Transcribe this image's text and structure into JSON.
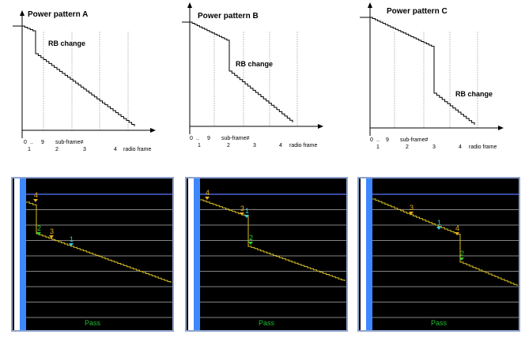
{
  "diagrams": [
    {
      "title": "Power pattern A",
      "rb_label": "RB change",
      "axis_sub_labels": [
        "0",
        "..",
        "9"
      ],
      "axis_label_subframe": "sub-frame#",
      "axis_label_radio": "radio frame",
      "radio_frames": [
        "1",
        "2",
        "3",
        "4"
      ]
    },
    {
      "title": "Power pattern B",
      "rb_label": "RB change",
      "axis_sub_labels": [
        "0",
        "..",
        "9"
      ],
      "axis_label_subframe": "sub-frame#",
      "axis_label_radio": "radio frame",
      "radio_frames": [
        "1",
        "2",
        "3",
        "4"
      ]
    },
    {
      "title": "Power pattern C",
      "rb_label": "RB change",
      "axis_sub_labels": [
        "0",
        "..",
        "9"
      ],
      "axis_label_subframe": "sub-frame#",
      "axis_label_radio": "radio frame",
      "radio_frames": [
        "1",
        "2",
        "3",
        "4"
      ]
    }
  ],
  "screens": [
    {
      "status": "Pass",
      "markers": [
        {
          "label": "4",
          "color": "#e8b020"
        },
        {
          "label": "2",
          "color": "#33cc33"
        },
        {
          "label": "3",
          "color": "#e8b020"
        },
        {
          "label": "1",
          "color": "#33ccdd"
        }
      ]
    },
    {
      "status": "Pass",
      "markers": [
        {
          "label": "4",
          "color": "#e8b020"
        },
        {
          "label": "3",
          "color": "#e8b020"
        },
        {
          "label": "1",
          "color": "#33ccdd"
        },
        {
          "label": "2",
          "color": "#33cc33"
        }
      ]
    },
    {
      "status": "Pass",
      "markers": [
        {
          "label": "3",
          "color": "#e8b020"
        },
        {
          "label": "1",
          "color": "#33ccdd"
        },
        {
          "label": "4",
          "color": "#e8b020"
        },
        {
          "label": "2",
          "color": "#33cc33"
        }
      ]
    }
  ],
  "colors": {
    "trace": "#d8c020",
    "grid": "#b0b0b0",
    "top_line": "#5577ff",
    "screen_bg": "#000000",
    "pass": "#22bb33"
  }
}
